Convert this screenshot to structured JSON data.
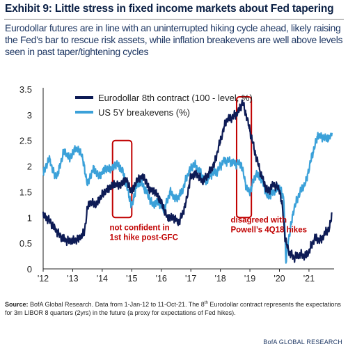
{
  "exhibit": {
    "title": "Exhibit 9: Little stress in fixed income markets about Fed tapering",
    "subtitle": "Eurodollar futures are in line with an uninterrupted hiking cycle ahead, likely raising the Fed’s bar to rescue risk assets, while inflation breakevens are well above levels seen in past taper/tightening cycles"
  },
  "footnote": {
    "label": "Source:",
    "text_a": " BofA Global Research. Data from 1-Jan-12 to 11-Oct-21. The 8",
    "sup": "th",
    "text_b": " Eurodollar contract represents the expectations for 3m LIBOR 8 quarters (2yrs) in the future (a proxy for expectations of Fed hikes)."
  },
  "brand": "BofA GLOBAL RESEARCH",
  "chart_data": {
    "type": "line",
    "xlim": [
      2012.0,
      2021.85
    ],
    "ylim": [
      0,
      3.5
    ],
    "y_ticks": [
      0,
      0.5,
      1,
      1.5,
      2,
      2.5,
      3,
      3.5
    ],
    "y_tick_labels": [
      "0",
      "0.5",
      "1",
      "1.5",
      "2",
      "2.5",
      "3",
      "3.5"
    ],
    "x_ticks": [
      2012,
      2013,
      2014,
      2015,
      2016,
      2017,
      2018,
      2019,
      2020,
      2021
    ],
    "x_tick_labels": [
      "'12",
      "'13",
      "'14",
      "'15",
      "'16",
      "'17",
      "'18",
      "'19",
      "'20",
      "'21"
    ],
    "grid": false,
    "legend": "top-left",
    "series": [
      {
        "name": "Eurodollar 8th contract (100 - level, %)",
        "color": "#0d1b55",
        "x": [
          2012.0,
          2012.2,
          2012.4,
          2012.6,
          2012.8,
          2013.0,
          2013.2,
          2013.4,
          2013.5,
          2013.6,
          2013.8,
          2014.0,
          2014.2,
          2014.4,
          2014.6,
          2014.8,
          2015.0,
          2015.2,
          2015.4,
          2015.6,
          2015.8,
          2016.0,
          2016.2,
          2016.4,
          2016.6,
          2016.8,
          2016.9,
          2017.0,
          2017.2,
          2017.4,
          2017.6,
          2017.8,
          2018.0,
          2018.2,
          2018.4,
          2018.6,
          2018.75,
          2018.85,
          2019.0,
          2019.2,
          2019.4,
          2019.6,
          2019.8,
          2020.0,
          2020.1,
          2020.2,
          2020.35,
          2020.5,
          2020.7,
          2020.9,
          2021.0,
          2021.2,
          2021.4,
          2021.55,
          2021.7,
          2021.78
        ],
        "values": [
          1.05,
          0.95,
          0.78,
          0.62,
          0.55,
          0.55,
          0.58,
          0.72,
          1.2,
          1.3,
          1.25,
          1.45,
          1.55,
          1.65,
          1.62,
          1.75,
          1.5,
          1.75,
          1.8,
          1.55,
          1.5,
          1.3,
          1.0,
          1.0,
          0.9,
          1.2,
          1.5,
          1.8,
          1.85,
          1.7,
          1.85,
          2.05,
          2.5,
          2.9,
          2.95,
          3.05,
          3.25,
          3.05,
          2.7,
          2.2,
          1.8,
          1.5,
          1.65,
          1.55,
          1.2,
          0.55,
          0.3,
          0.22,
          0.28,
          0.25,
          0.35,
          0.6,
          0.55,
          0.7,
          0.8,
          1.1
        ]
      },
      {
        "name": "US 5Y breakevens (%)",
        "color": "#3ba1d9",
        "x": [
          2012.0,
          2012.2,
          2012.4,
          2012.5,
          2012.7,
          2012.9,
          2013.1,
          2013.3,
          2013.5,
          2013.7,
          2013.9,
          2014.1,
          2014.3,
          2014.5,
          2014.7,
          2014.9,
          2015.0,
          2015.15,
          2015.3,
          2015.5,
          2015.7,
          2015.9,
          2016.1,
          2016.3,
          2016.5,
          2016.7,
          2016.9,
          2017.1,
          2017.3,
          2017.5,
          2017.7,
          2017.9,
          2018.1,
          2018.3,
          2018.5,
          2018.7,
          2018.9,
          2019.0,
          2019.2,
          2019.4,
          2019.6,
          2019.8,
          2020.0,
          2020.15,
          2020.22,
          2020.3,
          2020.5,
          2020.7,
          2020.9,
          2021.1,
          2021.3,
          2021.5,
          2021.7,
          2021.78
        ],
        "values": [
          1.85,
          2.15,
          1.8,
          1.85,
          2.3,
          2.15,
          2.35,
          2.25,
          1.65,
          1.95,
          1.8,
          1.95,
          1.95,
          2.05,
          1.9,
          1.45,
          1.2,
          1.6,
          1.7,
          1.5,
          1.25,
          1.3,
          1.15,
          1.5,
          1.35,
          1.5,
          1.85,
          2.05,
          1.9,
          1.7,
          1.85,
          1.9,
          2.1,
          2.1,
          2.05,
          2.05,
          1.55,
          1.5,
          1.85,
          1.75,
          1.4,
          1.5,
          1.6,
          1.35,
          0.15,
          0.55,
          1.2,
          1.5,
          1.7,
          2.2,
          2.6,
          2.55,
          2.55,
          2.65
        ]
      }
    ],
    "annotations": [
      {
        "text": [
          "not confident in",
          "1st hike post-GFC"
        ],
        "color": "#c00000",
        "x": 2014.25,
        "y": 0.75
      },
      {
        "text": [
          "disagreed with",
          "Powell’s 4Q18 hikes"
        ],
        "color": "#c00000",
        "x": 2018.35,
        "y": 0.9
      }
    ],
    "highlights": [
      {
        "color": "#c00000",
        "x": [
          2014.35,
          2015.0
        ],
        "y": [
          1.0,
          2.5
        ]
      },
      {
        "color": "#c00000",
        "x": [
          2018.55,
          2019.05
        ],
        "y": [
          1.0,
          3.35
        ]
      }
    ]
  }
}
